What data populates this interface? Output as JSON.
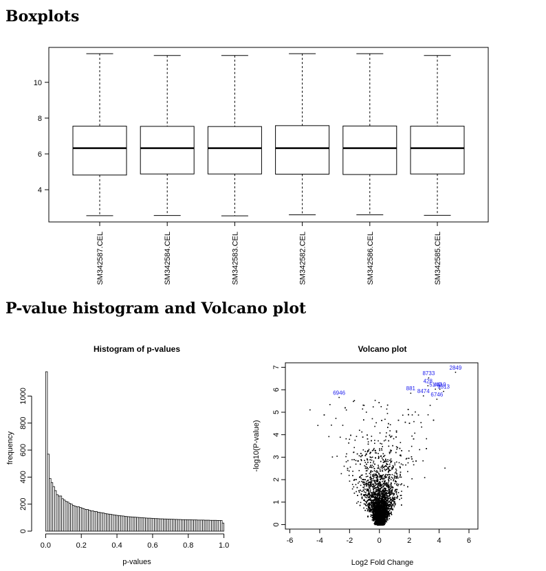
{
  "headings": {
    "boxplots": "Boxplots",
    "pvalue_volcano": "P-value histogram and Volcano plot"
  },
  "chart_data": [
    {
      "type": "box",
      "title": "",
      "ylim": [
        2.2,
        11.95
      ],
      "yticks": [
        4,
        6,
        8,
        10
      ],
      "categories": [
        "SM342587.CEL",
        "SM342584.CEL",
        "SM342583.CEL",
        "SM342582.CEL",
        "SM342586.CEL",
        "SM342585.CEL"
      ],
      "boxes": [
        {
          "min": 2.55,
          "q1": 4.82,
          "median": 6.32,
          "q3": 7.55,
          "max": 11.6
        },
        {
          "min": 2.56,
          "q1": 4.88,
          "median": 6.32,
          "q3": 7.54,
          "max": 11.5
        },
        {
          "min": 2.54,
          "q1": 4.88,
          "median": 6.32,
          "q3": 7.53,
          "max": 11.5
        },
        {
          "min": 2.6,
          "q1": 4.87,
          "median": 6.32,
          "q3": 7.58,
          "max": 11.6
        },
        {
          "min": 2.6,
          "q1": 4.85,
          "median": 6.32,
          "q3": 7.56,
          "max": 11.6
        },
        {
          "min": 2.57,
          "q1": 4.88,
          "median": 6.32,
          "q3": 7.55,
          "max": 11.5
        }
      ],
      "colors": {
        "box_fill": "#ffffff",
        "stroke": "#000000"
      }
    },
    {
      "type": "histogram",
      "title": "Histogram of p-values",
      "xlabel": "p-values",
      "ylabel": "frequency",
      "xlim": [
        -0.04,
        1.04
      ],
      "ylim": [
        0,
        1180
      ],
      "xticks": [
        0.0,
        0.2,
        0.4,
        0.6,
        0.8,
        1.0
      ],
      "xtick_labels": [
        "0.0",
        "0.2",
        "0.4",
        "0.6",
        "0.8",
        "1.0"
      ],
      "yticks": [
        0,
        200,
        400,
        600,
        800,
        1000
      ],
      "bin_width": 0.01,
      "bin_start": 0.0,
      "values": [
        1180,
        570,
        390,
        360,
        330,
        300,
        270,
        260,
        260,
        240,
        230,
        220,
        215,
        205,
        200,
        190,
        185,
        180,
        180,
        175,
        170,
        165,
        160,
        160,
        155,
        150,
        150,
        145,
        145,
        140,
        138,
        136,
        134,
        130,
        128,
        126,
        125,
        122,
        120,
        118,
        116,
        115,
        113,
        112,
        110,
        108,
        107,
        106,
        105,
        104,
        103,
        102,
        101,
        100,
        99,
        98,
        97,
        96,
        96,
        95,
        94,
        93,
        93,
        92,
        91,
        91,
        90,
        90,
        89,
        89,
        88,
        88,
        87,
        87,
        86,
        86,
        85,
        85,
        85,
        84,
        84,
        84,
        83,
        83,
        83,
        82,
        82,
        82,
        82,
        81,
        81,
        81,
        80,
        80,
        80,
        80,
        79,
        79,
        79,
        60
      ]
    },
    {
      "type": "scatter",
      "title": "Volcano plot",
      "xlabel": "Log2 Fold Change",
      "ylabel": "-log10(P-value)",
      "xlim": [
        -6.3,
        6.6
      ],
      "ylim": [
        -0.2,
        7.2
      ],
      "xticks": [
        -6,
        -4,
        -2,
        0,
        2,
        4,
        6
      ],
      "yticks": [
        0,
        1,
        2,
        3,
        4,
        5,
        6,
        7
      ],
      "point_color": "#000000",
      "label_color": "#1a1aee",
      "labeled_points": [
        {
          "label": "2849",
          "x": 5.1,
          "y": 6.9
        },
        {
          "label": "8733",
          "x": 3.3,
          "y": 6.65
        },
        {
          "label": "428",
          "x": 3.25,
          "y": 6.3
        },
        {
          "label": "5149",
          "x": 3.75,
          "y": 6.15
        },
        {
          "label": "4419",
          "x": 4.05,
          "y": 6.15
        },
        {
          "label": "9313",
          "x": 4.3,
          "y": 6.05
        },
        {
          "label": "881",
          "x": 2.1,
          "y": 5.97
        },
        {
          "label": "8474",
          "x": 2.95,
          "y": 5.85
        },
        {
          "label": "6746",
          "x": 3.85,
          "y": 5.7
        },
        {
          "label": "6946",
          "x": -2.7,
          "y": 5.78
        }
      ]
    }
  ]
}
